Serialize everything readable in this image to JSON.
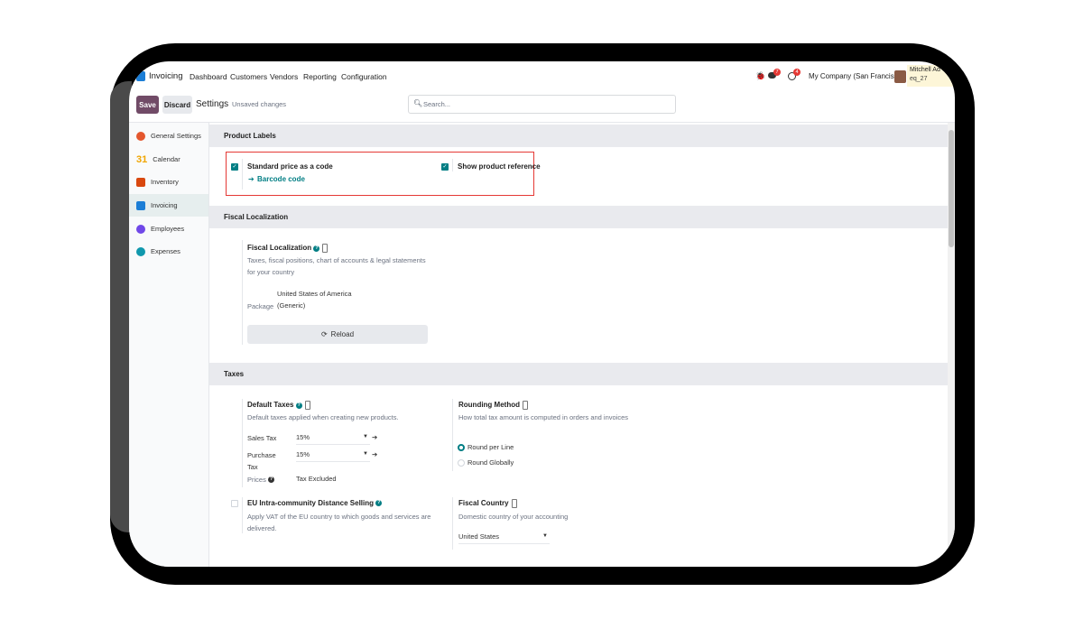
{
  "navbar": {
    "app": "Invoicing",
    "menu": [
      "Dashboard",
      "Customers",
      "Vendors",
      "Reporting",
      "Configuration"
    ],
    "messages_count": "7",
    "activities_count": "4",
    "company": "My Company (San Francisco)",
    "user_name": "Mitchell Ad",
    "database": "eq_27"
  },
  "controls": {
    "save": "Save",
    "discard": "Discard",
    "title": "Settings",
    "status": "Unsaved changes",
    "search_placeholder": "Search..."
  },
  "sidebar": {
    "items": [
      {
        "label": "General Settings",
        "color": "#e4572e"
      },
      {
        "label": "Calendar",
        "color": "#f0a500"
      },
      {
        "label": "Inventory",
        "color": "#d9480f"
      },
      {
        "label": "Invoicing",
        "color": "#1c7ed6",
        "active": true
      },
      {
        "label": "Employees",
        "color": "#7048e8"
      },
      {
        "label": "Expenses",
        "color": "#1098ad"
      }
    ]
  },
  "product_labels": {
    "header": "Product Labels",
    "standard_price": {
      "label": "Standard price as a code",
      "checked": true,
      "link": "Barcode code"
    },
    "show_reference": {
      "label": "Show product reference",
      "checked": true
    }
  },
  "fiscal_localization": {
    "header": "Fiscal Localization",
    "title": "Fiscal Localization",
    "description": "Taxes, fiscal positions, chart of accounts & legal statements for your country",
    "package_label": "Package",
    "package_value_line1": "United States of America",
    "package_value_line2": "(Generic)",
    "reload": "Reload"
  },
  "taxes": {
    "header": "Taxes",
    "default_taxes": {
      "title": "Default Taxes",
      "description": "Default taxes applied when creating new products.",
      "sales_label": "Sales Tax",
      "sales_value": "15%",
      "purchase_label_1": "Purchase",
      "purchase_label_2": "Tax",
      "purchase_value": "15%",
      "prices_label": "Prices",
      "prices_value": "Tax Excluded"
    },
    "rounding": {
      "title": "Rounding Method",
      "description": "How total tax amount is computed in orders and invoices",
      "options": [
        "Round per Line",
        "Round Globally"
      ],
      "selected": "Round per Line"
    },
    "eu": {
      "title": "EU Intra-community Distance Selling",
      "description_1": "Apply VAT of the EU country to which goods and services are",
      "description_2": "delivered.",
      "checked": false
    },
    "fiscal_country": {
      "title": "Fiscal Country",
      "description": "Domestic country of your accounting",
      "value": "United States"
    }
  },
  "colors": {
    "brand": "#714b67",
    "accent": "#017e84",
    "highlight": "#e53935"
  }
}
